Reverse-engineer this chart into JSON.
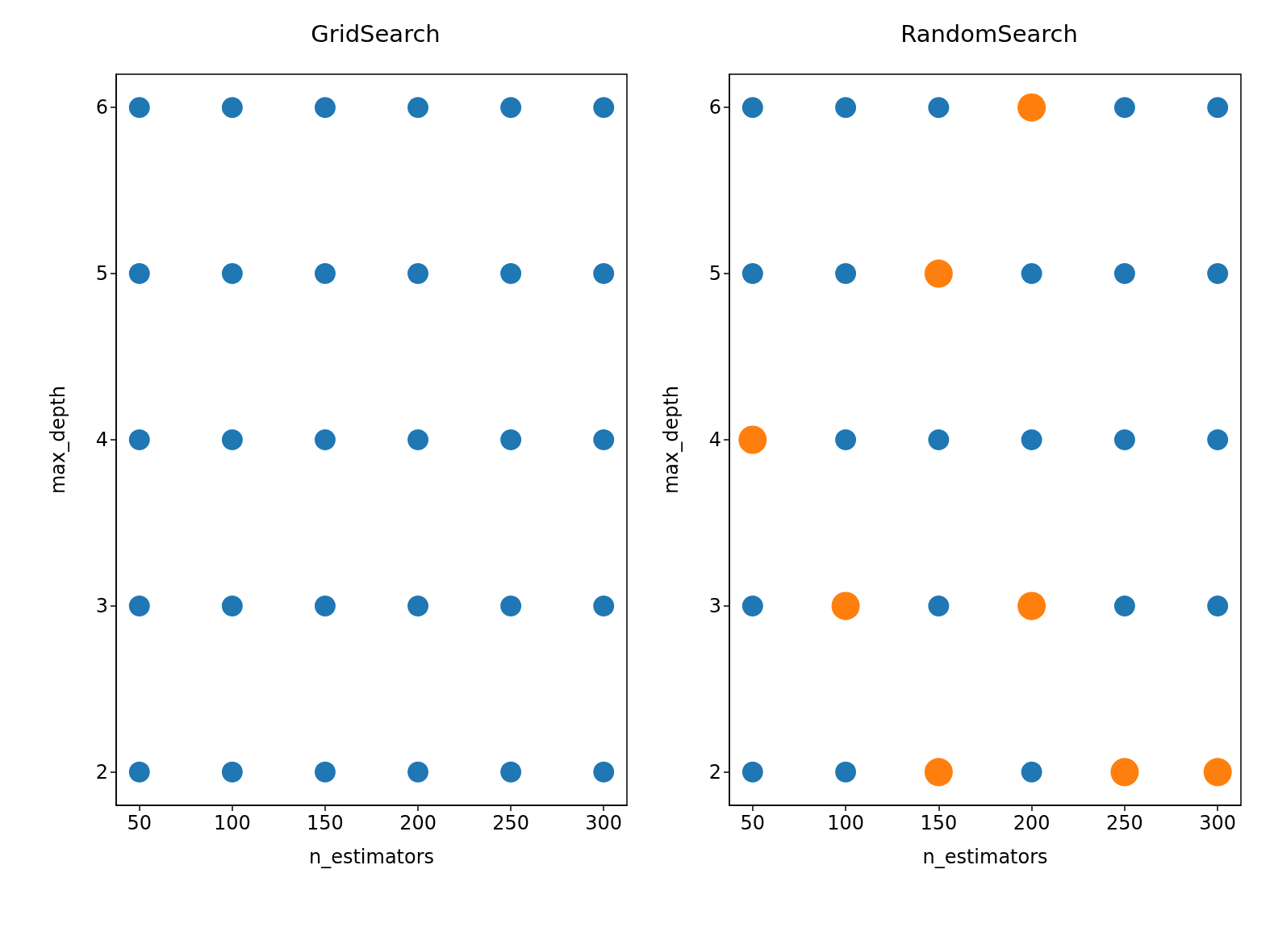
{
  "chart_data": [
    {
      "type": "scatter",
      "title": "GridSearch",
      "xlabel": "n_estimators",
      "ylabel": "max_depth",
      "xlim": [
        37.5,
        312.5
      ],
      "xticks": [
        50,
        100,
        150,
        200,
        250,
        300
      ],
      "ylim": [
        1.8,
        6.2
      ],
      "yticks": [
        2,
        3,
        4,
        5,
        6
      ],
      "marker": "circle",
      "series": [
        {
          "color": "#1f77b4",
          "x": [
            50,
            100,
            150,
            200,
            250,
            300,
            50,
            100,
            150,
            200,
            250,
            300,
            50,
            100,
            150,
            200,
            250,
            300,
            50,
            100,
            150,
            200,
            250,
            300,
            50,
            100,
            150,
            200,
            250,
            300
          ],
          "values": [
            6,
            6,
            6,
            6,
            6,
            6,
            5,
            5,
            5,
            5,
            5,
            5,
            4,
            4,
            4,
            4,
            4,
            4,
            3,
            3,
            3,
            3,
            3,
            3,
            2,
            2,
            2,
            2,
            2,
            2
          ]
        }
      ]
    },
    {
      "type": "scatter",
      "title": "RandomSearch",
      "xlabel": "n_estimators",
      "ylabel": "max_depth",
      "xlim": [
        37.5,
        312.5
      ],
      "xticks": [
        50,
        100,
        150,
        200,
        250,
        300
      ],
      "ylim": [
        1.8,
        6.2
      ],
      "yticks": [
        2,
        3,
        4,
        5,
        6
      ],
      "marker": "circle",
      "series": [
        {
          "color": "#1f77b4",
          "x": [
            50,
            100,
            150,
            250,
            300,
            50,
            100,
            200,
            250,
            300,
            100,
            150,
            200,
            250,
            300,
            50,
            150,
            250,
            300,
            50,
            100,
            200
          ],
          "values": [
            6,
            6,
            6,
            6,
            6,
            5,
            5,
            5,
            5,
            5,
            4,
            4,
            4,
            4,
            4,
            3,
            3,
            3,
            3,
            2,
            2,
            2
          ]
        },
        {
          "color": "#ff7f0e",
          "x": [
            200,
            150,
            50,
            100,
            200,
            150,
            250,
            300
          ],
          "values": [
            6,
            5,
            4,
            3,
            3,
            2,
            2,
            2
          ]
        }
      ]
    }
  ]
}
